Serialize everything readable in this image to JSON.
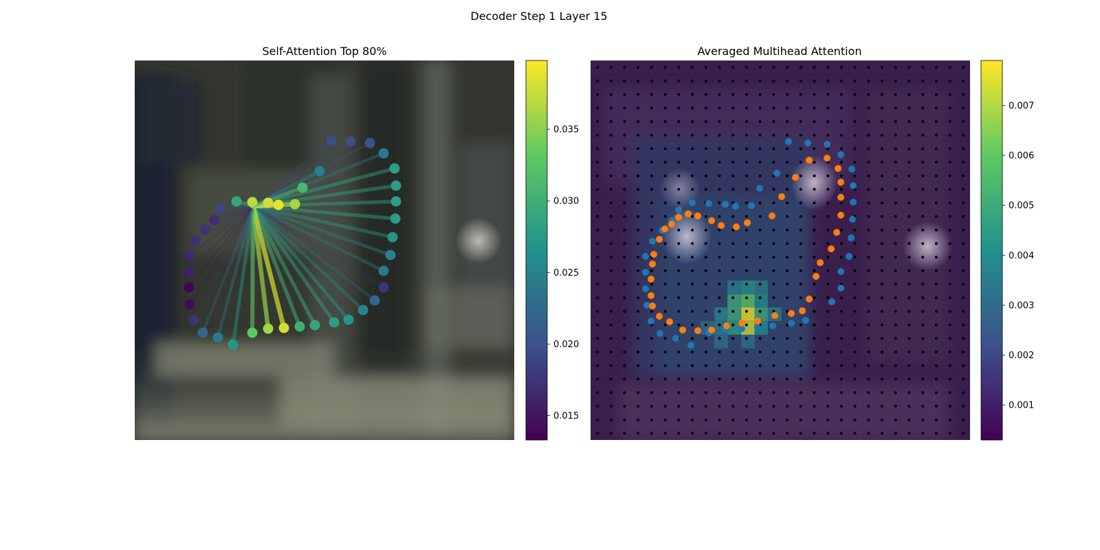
{
  "figure": {
    "suptitle": "Decoder Step 1 Layer 15"
  },
  "colormap": "viridis",
  "chart_data": [
    {
      "type": "scatter",
      "title": "Self-Attention Top 80%",
      "description_of_marks": "keypoint nodes on image, each connected to the query node; color = attention weight",
      "colorbar": {
        "range": [
          0.0133,
          0.0398
        ],
        "ticks": [
          0.015,
          0.02,
          0.025,
          0.03,
          0.035
        ],
        "tick_labels": [
          "0.015",
          "0.020",
          "0.025",
          "0.030",
          "0.035"
        ]
      },
      "query_point": {
        "x": 172,
        "y": 212
      },
      "points": [
        {
          "x": 286,
          "y": 117,
          "v": 0.0195
        },
        {
          "x": 314,
          "y": 118,
          "v": 0.0195
        },
        {
          "x": 342,
          "y": 120,
          "v": 0.02
        },
        {
          "x": 362,
          "y": 135,
          "v": 0.024
        },
        {
          "x": 378,
          "y": 157,
          "v": 0.028
        },
        {
          "x": 380,
          "y": 182,
          "v": 0.028
        },
        {
          "x": 380,
          "y": 205,
          "v": 0.028
        },
        {
          "x": 379,
          "y": 230,
          "v": 0.028
        },
        {
          "x": 375,
          "y": 257,
          "v": 0.027
        },
        {
          "x": 372,
          "y": 283,
          "v": 0.025
        },
        {
          "x": 362,
          "y": 306,
          "v": 0.024
        },
        {
          "x": 362,
          "y": 330,
          "v": 0.0175
        },
        {
          "x": 349,
          "y": 349,
          "v": 0.022
        },
        {
          "x": 332,
          "y": 363,
          "v": 0.025
        },
        {
          "x": 311,
          "y": 377,
          "v": 0.027
        },
        {
          "x": 290,
          "y": 381,
          "v": 0.028
        },
        {
          "x": 262,
          "y": 385,
          "v": 0.029
        },
        {
          "x": 240,
          "y": 387,
          "v": 0.03
        },
        {
          "x": 217,
          "y": 389,
          "v": 0.038
        },
        {
          "x": 194,
          "y": 390,
          "v": 0.036
        },
        {
          "x": 171,
          "y": 396,
          "v": 0.033
        },
        {
          "x": 143,
          "y": 413,
          "v": 0.027
        },
        {
          "x": 121,
          "y": 403,
          "v": 0.024
        },
        {
          "x": 99,
          "y": 396,
          "v": 0.022
        },
        {
          "x": 86,
          "y": 378,
          "v": 0.0175
        },
        {
          "x": 80,
          "y": 355,
          "v": 0.014
        },
        {
          "x": 79,
          "y": 330,
          "v": 0.0135
        },
        {
          "x": 79,
          "y": 307,
          "v": 0.016
        },
        {
          "x": 79,
          "y": 284,
          "v": 0.0165
        },
        {
          "x": 88,
          "y": 262,
          "v": 0.017
        },
        {
          "x": 102,
          "y": 246,
          "v": 0.0175
        },
        {
          "x": 116,
          "y": 232,
          "v": 0.017
        },
        {
          "x": 125,
          "y": 215,
          "v": 0.019
        },
        {
          "x": 148,
          "y": 205,
          "v": 0.029
        },
        {
          "x": 171,
          "y": 206,
          "v": 0.037
        },
        {
          "x": 194,
          "y": 207,
          "v": 0.038
        },
        {
          "x": 209,
          "y": 210,
          "v": 0.039
        },
        {
          "x": 233,
          "y": 209,
          "v": 0.036
        },
        {
          "x": 244,
          "y": 185,
          "v": 0.031
        },
        {
          "x": 269,
          "y": 161,
          "v": 0.025
        }
      ]
    },
    {
      "type": "heatmap",
      "title": "Averaged Multihead Attention",
      "grid_size": [
        28,
        28
      ],
      "colorbar": {
        "range": [
          0.0003,
          0.0079
        ],
        "ticks": [
          0.001,
          0.002,
          0.003,
          0.004,
          0.005,
          0.006,
          0.007
        ],
        "tick_labels": [
          "0.001",
          "0.002",
          "0.003",
          "0.004",
          "0.005",
          "0.006",
          "0.007"
        ]
      },
      "hotspots": [
        {
          "x": 229,
          "y": 369,
          "v": 0.0079
        },
        {
          "x": 229,
          "y": 389,
          "v": 0.0074
        },
        {
          "x": 229,
          "y": 350,
          "v": 0.006
        },
        {
          "x": 209,
          "y": 350,
          "v": 0.005
        },
        {
          "x": 209,
          "y": 369,
          "v": 0.005
        },
        {
          "x": 248,
          "y": 369,
          "v": 0.005
        },
        {
          "x": 248,
          "y": 350,
          "v": 0.004
        },
        {
          "x": 229,
          "y": 330,
          "v": 0.0042
        },
        {
          "x": 209,
          "y": 330,
          "v": 0.0035
        },
        {
          "x": 248,
          "y": 330,
          "v": 0.0035
        },
        {
          "x": 190,
          "y": 369,
          "v": 0.0038
        },
        {
          "x": 190,
          "y": 389,
          "v": 0.0035
        },
        {
          "x": 209,
          "y": 389,
          "v": 0.0045
        },
        {
          "x": 248,
          "y": 389,
          "v": 0.004
        },
        {
          "x": 268,
          "y": 369,
          "v": 0.0035
        },
        {
          "x": 170,
          "y": 389,
          "v": 0.003
        },
        {
          "x": 190,
          "y": 409,
          "v": 0.003
        },
        {
          "x": 229,
          "y": 409,
          "v": 0.003
        }
      ],
      "series": [
        {
          "name": "blue",
          "points": [
            [
              288,
              118
            ],
            [
              316,
              120
            ],
            [
              344,
              122
            ],
            [
              364,
              137
            ],
            [
              380,
              158
            ],
            [
              382,
              182
            ],
            [
              382,
              206
            ],
            [
              381,
              231
            ],
            [
              379,
              258
            ],
            [
              376,
              285
            ],
            [
              364,
              307
            ],
            [
              364,
              331
            ],
            [
              351,
              351
            ],
            [
              313,
              378
            ],
            [
              292,
              382
            ],
            [
              265,
              386
            ],
            [
              243,
              388
            ],
            [
              220,
              390
            ],
            [
              196,
              391
            ],
            [
              172,
              396
            ],
            [
              146,
              414
            ],
            [
              124,
              404
            ],
            [
              101,
              397
            ],
            [
              88,
              379
            ],
            [
              82,
              356
            ],
            [
              80,
              332
            ],
            [
              80,
              308
            ],
            [
              80,
              285
            ],
            [
              90,
              263
            ],
            [
              104,
              247
            ],
            [
              118,
              233
            ],
            [
              128,
              217
            ],
            [
              148,
              207
            ],
            [
              172,
              208
            ],
            [
              196,
              209
            ],
            [
              211,
              212
            ],
            [
              234,
              211
            ],
            [
              246,
              186
            ],
            [
              271,
              164
            ]
          ]
        },
        {
          "name": "orange",
          "points": [
            [
              344,
              142
            ],
            [
              360,
              157
            ],
            [
              364,
              177
            ],
            [
              364,
              199
            ],
            [
              364,
              225
            ],
            [
              358,
              250
            ],
            [
              350,
              274
            ],
            [
              334,
              294
            ],
            [
              328,
              314
            ],
            [
              318,
              347
            ],
            [
              308,
              364
            ],
            [
              292,
              368
            ],
            [
              268,
              371
            ],
            [
              243,
              379
            ],
            [
              220,
              382
            ],
            [
              198,
              386
            ],
            [
              176,
              392
            ],
            [
              156,
              393
            ],
            [
              134,
              392
            ],
            [
              115,
              380
            ],
            [
              100,
              372
            ],
            [
              90,
              357
            ],
            [
              88,
              342
            ],
            [
              88,
              318
            ],
            [
              90,
              296
            ],
            [
              92,
              282
            ],
            [
              100,
              260
            ],
            [
              108,
              245
            ],
            [
              118,
              238
            ],
            [
              128,
              228
            ],
            [
              142,
              223
            ],
            [
              156,
              226
            ],
            [
              176,
              233
            ],
            [
              190,
              240
            ],
            [
              212,
              242
            ],
            [
              228,
              236
            ],
            [
              264,
              226
            ],
            [
              278,
              198
            ],
            [
              298,
              170
            ],
            [
              318,
              145
            ]
          ]
        }
      ]
    }
  ]
}
